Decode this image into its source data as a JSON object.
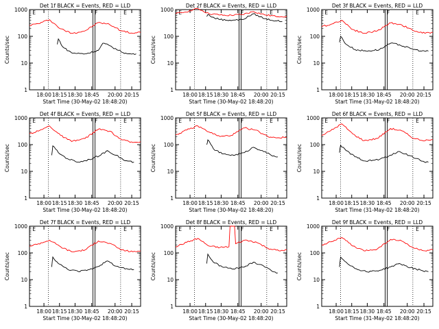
{
  "figure": {
    "ylabel": "Counts/sec",
    "xtick_labels": [
      "18:00",
      "18:15",
      "18:30",
      "18:45",
      "20:00",
      "20:15"
    ],
    "ytick_labels": [
      "1",
      "10",
      "100",
      "1000"
    ],
    "colors": {
      "events": "#000000",
      "lld": "#ff0000",
      "axes": "#000000",
      "background": "#ffffff"
    },
    "marker_labels": {
      "start": "E",
      "mid": "F",
      "end": "E"
    }
  },
  "chart_data": [
    {
      "type": "line",
      "title": "Det 1f BLACK = Events, RED = LLD",
      "xlabel": "Start Time (30-May-02 18:48:20)",
      "ylabel": "Counts/sec",
      "ylog": true,
      "ylim": [
        1,
        1000
      ],
      "series": [
        {
          "color": "#ff0000",
          "x": [
            0.0,
            0.08,
            0.18,
            0.28,
            0.38,
            0.5,
            0.62,
            0.72,
            0.83,
            0.93,
            1.0
          ],
          "values": [
            260,
            300,
            420,
            190,
            130,
            160,
            330,
            280,
            160,
            130,
            140
          ]
        },
        {
          "color": "#000000",
          "x": [
            0.25,
            0.26,
            0.3,
            0.38,
            0.5,
            0.62,
            0.66,
            0.72,
            0.8,
            0.88,
            0.96
          ],
          "values": [
            50,
            80,
            40,
            24,
            22,
            30,
            55,
            45,
            30,
            22,
            22
          ]
        }
      ]
    },
    {
      "type": "line",
      "title": "Det 2f BLACK = Events, RED = LLD",
      "xlabel": "Start Time (30-May-02 18:48:20)",
      "ylabel": "Counts/sec",
      "ylog": true,
      "ylim": [
        1,
        1000
      ],
      "series": [
        {
          "color": "#ff0000",
          "x": [
            0.0,
            0.08,
            0.2,
            0.3,
            0.45,
            0.6,
            0.7,
            0.8,
            0.9,
            1.0
          ],
          "values": [
            700,
            800,
            1100,
            700,
            600,
            650,
            850,
            640,
            560,
            560
          ]
        },
        {
          "color": "#000000",
          "x": [
            0.28,
            0.29,
            0.35,
            0.45,
            0.6,
            0.7,
            0.8,
            0.9,
            0.96
          ],
          "values": [
            550,
            650,
            480,
            400,
            420,
            700,
            460,
            380,
            360
          ]
        }
      ]
    },
    {
      "type": "line",
      "title": "Det 3f BLACK = Events, RED = LLD",
      "xlabel": "Start Time (31-May-02 18:48:20)",
      "ylabel": "Counts/sec",
      "ylog": true,
      "ylim": [
        1,
        1000
      ],
      "series": [
        {
          "color": "#ff0000",
          "x": [
            0.0,
            0.08,
            0.18,
            0.28,
            0.38,
            0.5,
            0.62,
            0.72,
            0.83,
            0.93,
            1.0
          ],
          "values": [
            230,
            280,
            400,
            180,
            130,
            160,
            320,
            270,
            160,
            130,
            140
          ]
        },
        {
          "color": "#000000",
          "x": [
            0.16,
            0.17,
            0.22,
            0.3,
            0.4,
            0.52,
            0.62,
            0.7,
            0.8,
            0.9,
            0.96
          ],
          "values": [
            60,
            100,
            50,
            32,
            28,
            32,
            55,
            48,
            35,
            28,
            28
          ]
        }
      ]
    },
    {
      "type": "line",
      "title": "Det 4f BLACK = Events, RED = LLD",
      "xlabel": "Start Time (30-May-02 18:48:20)",
      "ylabel": "Counts/sec",
      "ylog": true,
      "ylim": [
        1,
        1000
      ],
      "series": [
        {
          "color": "#ff0000",
          "x": [
            0.0,
            0.08,
            0.18,
            0.28,
            0.38,
            0.5,
            0.62,
            0.72,
            0.83,
            0.93,
            1.0
          ],
          "values": [
            260,
            320,
            500,
            220,
            130,
            170,
            380,
            320,
            150,
            120,
            130
          ]
        },
        {
          "color": "#000000",
          "x": [
            0.2,
            0.21,
            0.26,
            0.34,
            0.44,
            0.54,
            0.64,
            0.7,
            0.78,
            0.86,
            0.94
          ],
          "values": [
            40,
            90,
            50,
            30,
            22,
            28,
            40,
            60,
            40,
            25,
            22
          ]
        }
      ]
    },
    {
      "type": "line",
      "title": "Det 5f BLACK = Events, RED = LLD",
      "xlabel": "Start Time (30-May-02 18:48:20)",
      "ylabel": "Counts/sec",
      "ylog": true,
      "ylim": [
        1,
        1000
      ],
      "series": [
        {
          "color": "#ff0000",
          "x": [
            0.0,
            0.1,
            0.2,
            0.3,
            0.4,
            0.5,
            0.62,
            0.72,
            0.83,
            0.93,
            1.0
          ],
          "values": [
            230,
            350,
            500,
            300,
            200,
            220,
            420,
            350,
            200,
            180,
            190
          ]
        },
        {
          "color": "#000000",
          "x": [
            0.28,
            0.29,
            0.34,
            0.42,
            0.52,
            0.62,
            0.7,
            0.78,
            0.86,
            0.92
          ],
          "values": [
            100,
            150,
            70,
            45,
            40,
            50,
            80,
            60,
            40,
            35
          ]
        }
      ]
    },
    {
      "type": "line",
      "title": "Det 6f BLACK = Events, RED = LLD",
      "xlabel": "Start Time (31-May-02 18:48:20)",
      "ylabel": "Counts/sec",
      "ylog": true,
      "ylim": [
        1,
        1000
      ],
      "series": [
        {
          "color": "#ff0000",
          "x": [
            0.0,
            0.08,
            0.18,
            0.28,
            0.38,
            0.5,
            0.62,
            0.72,
            0.83,
            0.93,
            1.0
          ],
          "values": [
            220,
            330,
            600,
            250,
            140,
            170,
            400,
            330,
            170,
            140,
            150
          ]
        },
        {
          "color": "#000000",
          "x": [
            0.16,
            0.17,
            0.22,
            0.3,
            0.4,
            0.52,
            0.62,
            0.7,
            0.8,
            0.9,
            0.96
          ],
          "values": [
            50,
            95,
            60,
            35,
            24,
            28,
            40,
            55,
            38,
            24,
            22
          ]
        }
      ]
    },
    {
      "type": "line",
      "title": "Det 7f BLACK = Events, RED = LLD",
      "xlabel": "Start Time (30-May-02 18:48:20)",
      "ylabel": "Counts/sec",
      "ylog": true,
      "ylim": [
        1,
        1000
      ],
      "series": [
        {
          "color": "#ff0000",
          "x": [
            0.0,
            0.08,
            0.18,
            0.28,
            0.38,
            0.5,
            0.62,
            0.72,
            0.83,
            0.93,
            1.0
          ],
          "values": [
            180,
            220,
            300,
            170,
            110,
            130,
            280,
            230,
            130,
            110,
            120
          ]
        },
        {
          "color": "#000000",
          "x": [
            0.2,
            0.21,
            0.26,
            0.34,
            0.44,
            0.54,
            0.64,
            0.7,
            0.78,
            0.86,
            0.94
          ],
          "values": [
            30,
            70,
            40,
            25,
            20,
            24,
            35,
            50,
            32,
            25,
            24
          ]
        }
      ]
    },
    {
      "type": "line",
      "title": "Det 8f BLACK = Events, RED = LLD",
      "xlabel": "Start Time (30-May-02 18:48:20)",
      "ylabel": "Counts/sec",
      "ylog": true,
      "ylim": [
        1,
        1000
      ],
      "series": [
        {
          "color": "#ff0000",
          "x": [
            0.0,
            0.1,
            0.2,
            0.3,
            0.4,
            0.48,
            0.49,
            0.53,
            0.54,
            0.62,
            0.72,
            0.83,
            0.93,
            1.0
          ],
          "values": [
            170,
            250,
            350,
            180,
            160,
            170,
            1000,
            1000,
            220,
            300,
            260,
            150,
            120,
            130
          ]
        },
        {
          "color": "#000000",
          "x": [
            0.28,
            0.29,
            0.34,
            0.42,
            0.52,
            0.62,
            0.7,
            0.78,
            0.86,
            0.92
          ],
          "values": [
            40,
            90,
            45,
            30,
            25,
            30,
            45,
            35,
            22,
            18
          ]
        }
      ]
    },
    {
      "type": "line",
      "title": "Det 9f BLACK = Events, RED = LLD",
      "xlabel": "Start Time (31-May-02 18:48:20)",
      "ylabel": "Counts/sec",
      "ylog": true,
      "ylim": [
        1,
        1000
      ],
      "series": [
        {
          "color": "#ff0000",
          "x": [
            0.0,
            0.08,
            0.18,
            0.28,
            0.38,
            0.5,
            0.62,
            0.72,
            0.83,
            0.93,
            1.0
          ],
          "values": [
            200,
            260,
            380,
            180,
            120,
            140,
            320,
            280,
            150,
            120,
            130
          ]
        },
        {
          "color": "#000000",
          "x": [
            0.16,
            0.17,
            0.22,
            0.3,
            0.4,
            0.52,
            0.62,
            0.7,
            0.8,
            0.9,
            0.96
          ],
          "values": [
            30,
            70,
            45,
            26,
            20,
            22,
            30,
            40,
            28,
            22,
            20
          ]
        }
      ]
    }
  ]
}
